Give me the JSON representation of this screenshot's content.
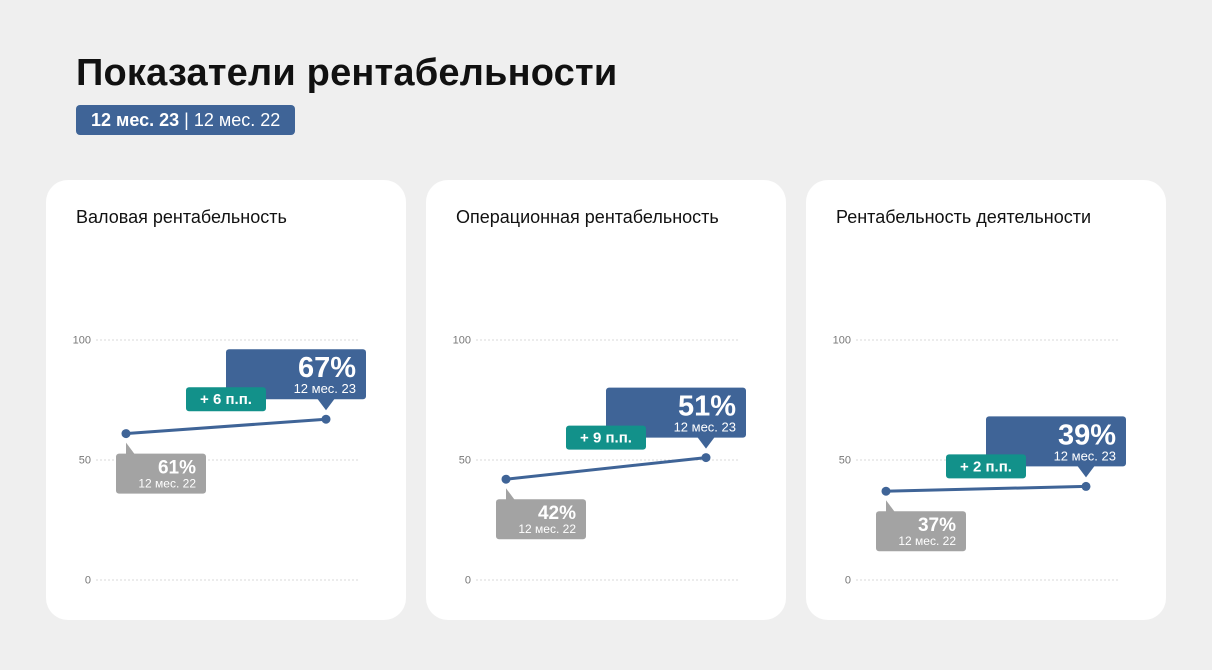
{
  "header": {
    "title": "Показатели рентабельности",
    "period_current": "12 мес. 23",
    "period_separator": "|",
    "period_previous": "12 мес. 22"
  },
  "colors": {
    "primary": "#3f6497",
    "delta": "#12918a",
    "previous": "#a3a3a3",
    "background": "#efefef",
    "card": "#ffffff"
  },
  "chart_data": [
    {
      "type": "line",
      "title": "Валовая рентабельность",
      "x": [
        "12 мес. 22",
        "12 мес. 23"
      ],
      "values": [
        61,
        67
      ],
      "ylim": [
        0,
        100
      ],
      "yticks": [
        0,
        50,
        100
      ],
      "grid": true,
      "labels": {
        "prev_value": "61%",
        "prev_period": "12 мес. 22",
        "curr_value": "67%",
        "curr_period": "12 мес. 23",
        "delta": "+ 6 п.п."
      }
    },
    {
      "type": "line",
      "title": "Операционная рентабельность",
      "x": [
        "12 мес. 22",
        "12 мес. 23"
      ],
      "values": [
        42,
        51
      ],
      "ylim": [
        0,
        100
      ],
      "yticks": [
        0,
        50,
        100
      ],
      "grid": true,
      "labels": {
        "prev_value": "42%",
        "prev_period": "12 мес. 22",
        "curr_value": "51%",
        "curr_period": "12 мес. 23",
        "delta": "+ 9 п.п."
      }
    },
    {
      "type": "line",
      "title": "Рентабельность деятельности",
      "x": [
        "12 мес. 22",
        "12 мес. 23"
      ],
      "values": [
        37,
        39
      ],
      "ylim": [
        0,
        100
      ],
      "yticks": [
        0,
        50,
        100
      ],
      "grid": true,
      "labels": {
        "prev_value": "37%",
        "prev_period": "12 мес. 22",
        "curr_value": "39%",
        "curr_period": "12 мес. 23",
        "delta": "+ 2 п.п."
      }
    }
  ]
}
